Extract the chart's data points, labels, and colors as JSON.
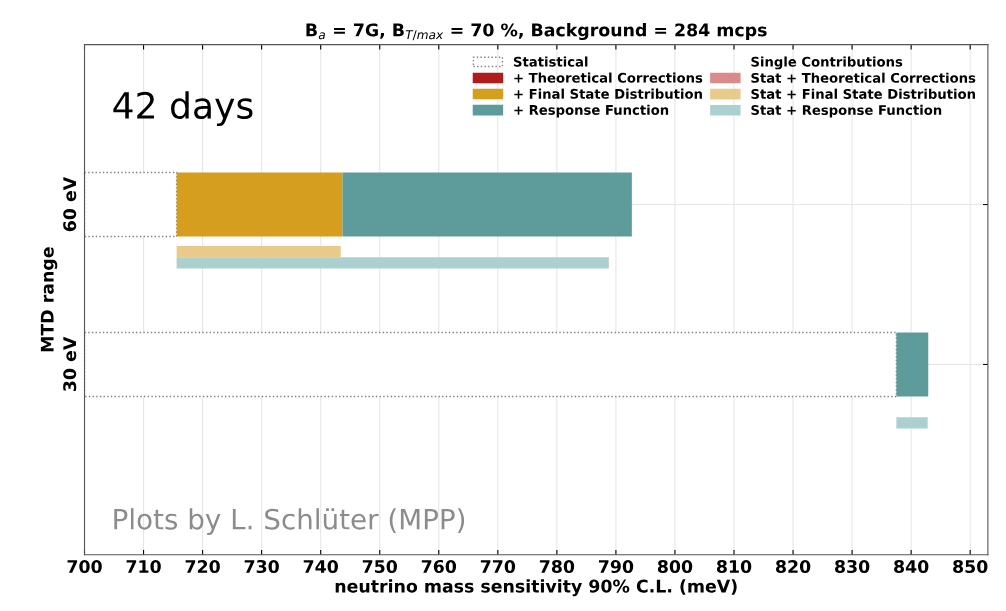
{
  "chart_data": {
    "type": "bar",
    "orientation": "horizontal",
    "title": "B$_{a}$ = 7G, B$_{T/max}$ = 70 %, Background = 284 mcps",
    "xlabel": "neutrino mass sensitivity 90% C.L. (meV)",
    "ylabel": "MTD range",
    "categories": [
      "60 eV",
      "30 eV"
    ],
    "series": [
      {
        "name": "Statistical",
        "line_style": "dotted",
        "color": "#808080",
        "base": [
          700,
          700
        ],
        "values": [
          15.6,
          137.5
        ]
      },
      {
        "name": "+ Theoretical Corrections",
        "color": "#b01c1c",
        "base": [
          null,
          null
        ],
        "values": [
          null,
          null
        ]
      },
      {
        "name": "+ Final State Distribution",
        "color": "#d69e1e",
        "base": [
          715.6,
          null
        ],
        "values": [
          28.1,
          null
        ]
      },
      {
        "name": "+ Response Function",
        "color": "#5e9b9b",
        "base": [
          743.7,
          837.5
        ],
        "values": [
          49.0,
          5.4
        ]
      },
      {
        "name": "Stat + Theoretical Corrections",
        "color": "#d98a8a",
        "base": [
          null,
          null
        ],
        "values": [
          null,
          null
        ]
      },
      {
        "name": "Stat + Final State Distribution",
        "color": "#e8cb8a",
        "base": [
          715.6,
          null
        ],
        "values": [
          27.8,
          null
        ]
      },
      {
        "name": "Stat + Response Function",
        "color": "#acd0cf",
        "base": [
          715.6,
          837.5
        ],
        "values": [
          73.2,
          5.3
        ]
      }
    ],
    "xlim": [
      700,
      853
    ],
    "xticks": [
      700,
      710,
      720,
      730,
      740,
      750,
      760,
      770,
      780,
      790,
      800,
      810,
      820,
      830,
      840,
      850
    ],
    "grid": true,
    "legend": "top right",
    "annotations": [
      "Single Contributions",
      "42 days",
      "Plots by L. Schlüter (MPP)"
    ]
  }
}
